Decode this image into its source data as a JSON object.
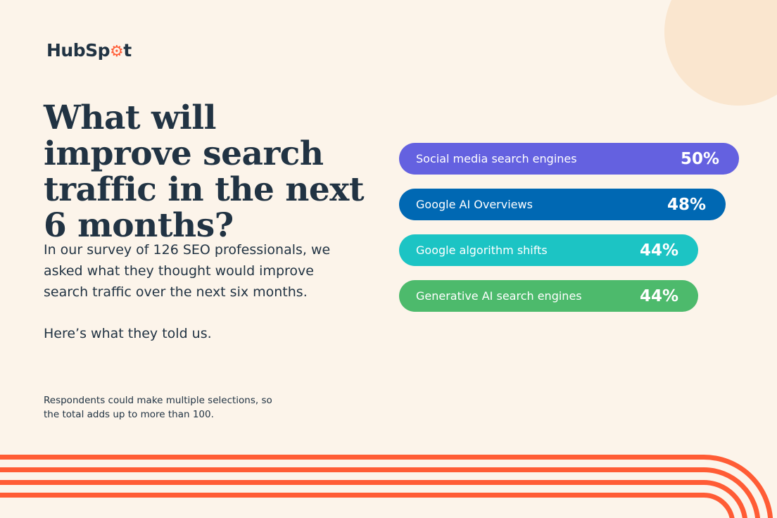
{
  "brand": {
    "logo_text": "HubSpot",
    "accent_color": "#ff5c35"
  },
  "headline": "What will improve search traffic in the next 6 months?",
  "intro": "In our survey of 126 SEO professionals, we asked what they thought would improve search traffic over the next six months.",
  "closing": "Here’s what they told us.",
  "footnote": "Respondents could make multiple selections, so the total adds up to more than 100.",
  "chart_data": {
    "type": "bar",
    "orientation": "horizontal",
    "categories": [
      "Social media search engines",
      "Google AI Overviews",
      "Google algorithm shifts",
      "Generative AI search engines"
    ],
    "values": [
      50,
      48,
      44,
      44
    ],
    "value_labels": [
      "50%",
      "48%",
      "44%",
      "44%"
    ],
    "unit": "%",
    "colors": [
      "#6461e0",
      "#0068b3",
      "#1cc4c4",
      "#4dba6c"
    ],
    "title": "",
    "xlabel": "",
    "ylabel": "",
    "grid": false
  }
}
